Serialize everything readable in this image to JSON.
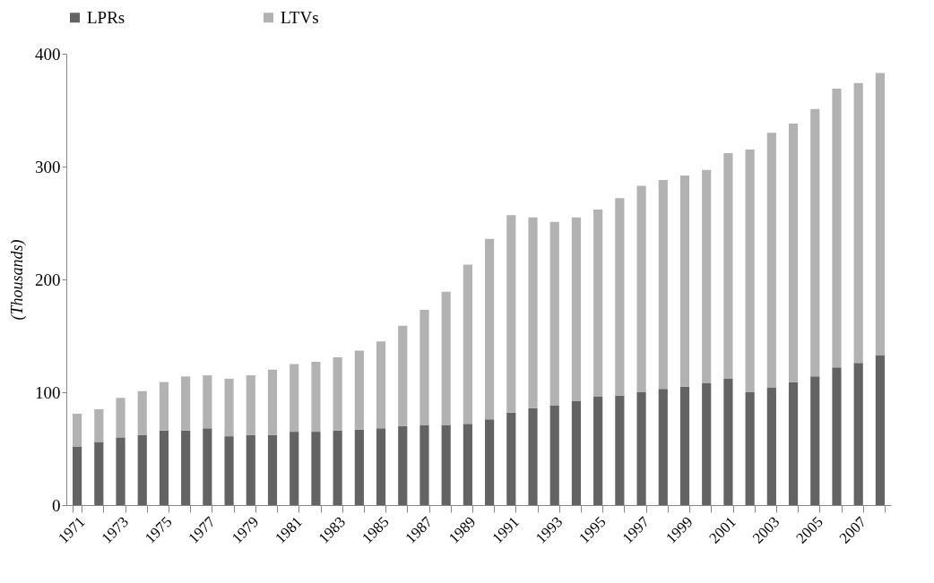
{
  "chart_data": {
    "type": "bar",
    "stacked": true,
    "ylabel": "(Thousands)",
    "legend": "top",
    "grid": false,
    "categories": [
      "1971",
      null,
      "1973",
      null,
      "1975",
      null,
      "1977",
      null,
      "1979",
      null,
      "1981",
      null,
      "1983",
      null,
      "1985",
      null,
      "1987",
      null,
      "1989",
      null,
      "1991",
      null,
      "1993",
      null,
      "1995",
      null,
      "1997",
      null,
      "1999",
      null,
      "2001",
      null,
      "2003",
      null,
      "2005",
      null,
      "2007",
      null
    ],
    "ylim": [
      0,
      400
    ],
    "yticks": [
      0,
      100,
      200,
      300,
      400
    ],
    "series": [
      {
        "name": "LPRs",
        "color": "#636363",
        "values": [
          52,
          56,
          60,
          62,
          66,
          66,
          68,
          61,
          62,
          62,
          65,
          65,
          66,
          67,
          68,
          70,
          71,
          71,
          72,
          76,
          82,
          86,
          88,
          92,
          96,
          97,
          100,
          103,
          105,
          108,
          112,
          100,
          104,
          109,
          114,
          122,
          126,
          133
        ]
      },
      {
        "name": "LTVs",
        "color": "#b2b2b2",
        "values": [
          29,
          29,
          35,
          39,
          43,
          48,
          47,
          51,
          53,
          58,
          60,
          62,
          65,
          70,
          77,
          89,
          102,
          118,
          141,
          160,
          175,
          169,
          163,
          163,
          166,
          175,
          183,
          185,
          187,
          189,
          200,
          215,
          226,
          229,
          237,
          247,
          248,
          250
        ]
      }
    ]
  }
}
